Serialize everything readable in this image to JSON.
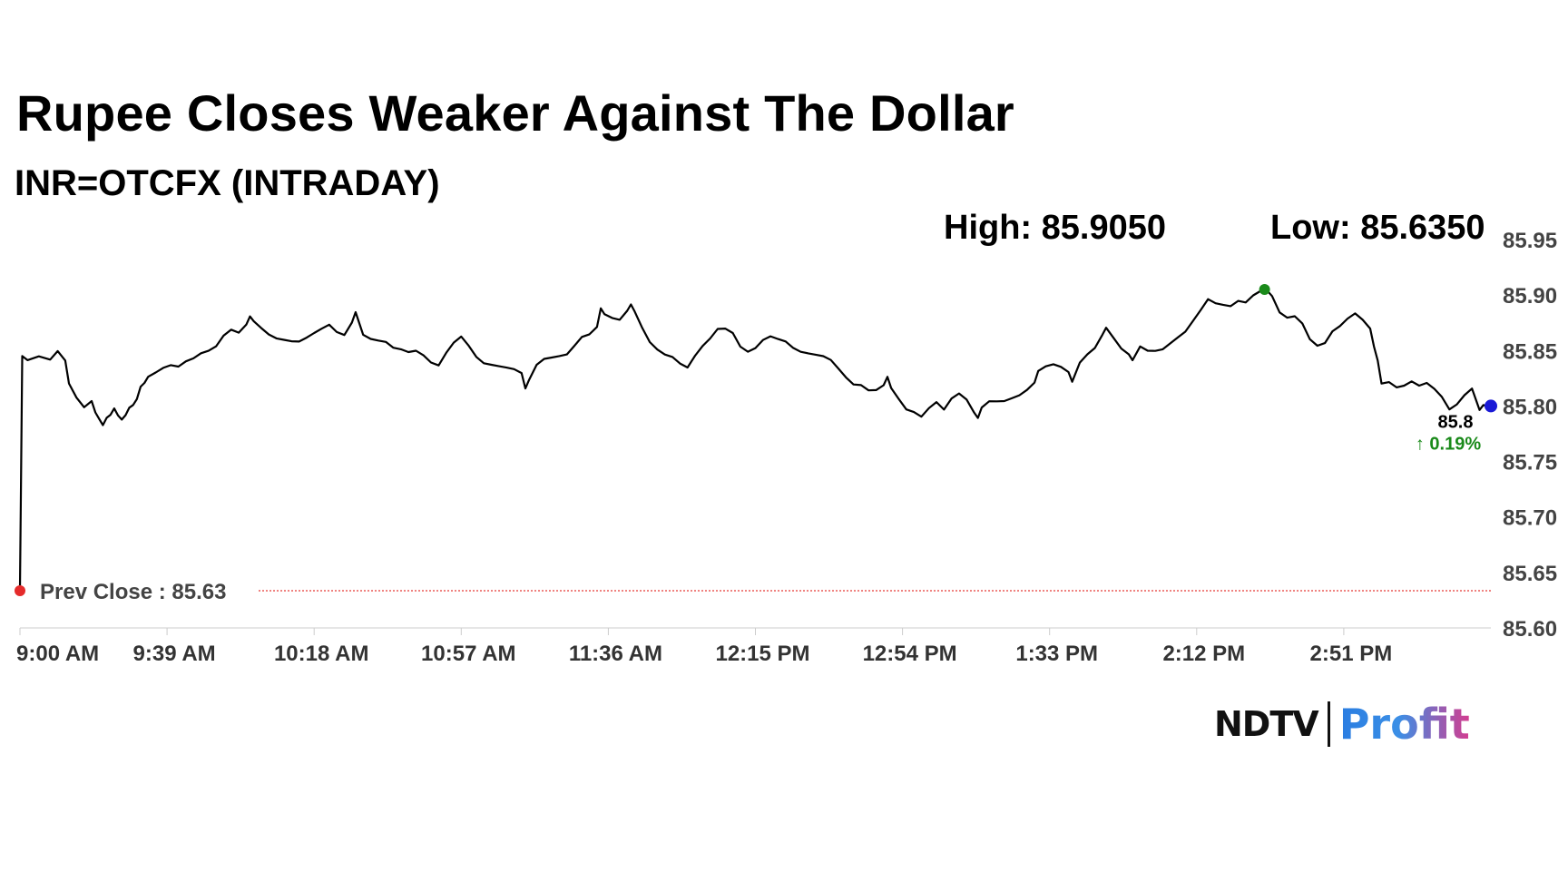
{
  "chart_data": {
    "type": "line",
    "title": "Rupee Closes Weaker Against The Dollar",
    "subtitle": "INR=OTCFX (INTRADAY)",
    "high_label": "High: 85.9050",
    "low_label": "Low: 85.6350",
    "yticks": [
      "85.95",
      "85.90",
      "85.85",
      "85.80",
      "85.75",
      "85.70",
      "85.65",
      "85.60"
    ],
    "ylim": [
      85.6,
      85.95
    ],
    "xticks": [
      "9:00 AM",
      "9:39 AM",
      "10:18 AM",
      "10:57 AM",
      "11:36 AM",
      "12:15 PM",
      "12:54 PM",
      "1:33 PM",
      "2:12 PM",
      "2:51 PM"
    ],
    "x_range_minutes": [
      0,
      390
    ],
    "prev_close": 85.6335,
    "prev_close_label": "Prev Close : 85.63",
    "last_value_label": "85.8",
    "change_label": "↑ 0.19%",
    "high_value": 85.905,
    "high_time_min": 330,
    "last_value": 85.8,
    "series": [
      {
        "points": [
          [
            0,
            85.635
          ],
          [
            0.6,
            85.845
          ],
          [
            2,
            85.84
          ],
          [
            5,
            85.843
          ],
          [
            8,
            85.84
          ],
          [
            10,
            85.848
          ],
          [
            12,
            85.84
          ],
          [
            13,
            85.82
          ],
          [
            15,
            85.808
          ],
          [
            17,
            85.8
          ],
          [
            19,
            85.806
          ],
          [
            20,
            85.796
          ],
          [
            21,
            85.79
          ],
          [
            22,
            85.784
          ],
          [
            23,
            85.79
          ],
          [
            24,
            85.792
          ],
          [
            25,
            85.797
          ],
          [
            26,
            85.79
          ],
          [
            27,
            85.786
          ],
          [
            28,
            85.79
          ],
          [
            29,
            85.797
          ],
          [
            30,
            85.8
          ],
          [
            31,
            85.806
          ],
          [
            32,
            85.818
          ],
          [
            33,
            85.822
          ],
          [
            34,
            85.828
          ],
          [
            36,
            85.832
          ],
          [
            38,
            85.836
          ],
          [
            40,
            85.838
          ],
          [
            42,
            85.836
          ],
          [
            44,
            85.84
          ],
          [
            46,
            85.842
          ],
          [
            48,
            85.846
          ],
          [
            50,
            85.848
          ],
          [
            52,
            85.852
          ],
          [
            54,
            85.862
          ],
          [
            56,
            85.868
          ],
          [
            58,
            85.866
          ],
          [
            60,
            85.874
          ],
          [
            61,
            85.882
          ],
          [
            62,
            85.878
          ],
          [
            64,
            85.872
          ],
          [
            66,
            85.866
          ],
          [
            68,
            85.862
          ],
          [
            70,
            85.86
          ],
          [
            72,
            85.858
          ],
          [
            74,
            85.857
          ],
          [
            76,
            85.86
          ],
          [
            78,
            85.864
          ],
          [
            80,
            85.868
          ],
          [
            82,
            85.872
          ],
          [
            84,
            85.866
          ],
          [
            86,
            85.864
          ],
          [
            88,
            85.876
          ],
          [
            89,
            85.886
          ],
          [
            90,
            85.876
          ],
          [
            91,
            85.866
          ],
          [
            93,
            85.862
          ],
          [
            95,
            85.86
          ],
          [
            97,
            85.858
          ],
          [
            99,
            85.852
          ],
          [
            101,
            85.85
          ],
          [
            103,
            85.847
          ],
          [
            105,
            85.848
          ],
          [
            107,
            85.844
          ],
          [
            109,
            85.838
          ],
          [
            111,
            85.836
          ],
          [
            113,
            85.848
          ],
          [
            115,
            85.858
          ],
          [
            117,
            85.864
          ],
          [
            119,
            85.856
          ],
          [
            121,
            85.846
          ],
          [
            123,
            85.84
          ],
          [
            125,
            85.838
          ],
          [
            127,
            85.836
          ],
          [
            129,
            85.834
          ],
          [
            131,
            85.832
          ],
          [
            133,
            85.828
          ],
          [
            134,
            85.814
          ],
          [
            135,
            85.822
          ],
          [
            137,
            85.836
          ],
          [
            139,
            85.842
          ],
          [
            141,
            85.844
          ],
          [
            143,
            85.846
          ],
          [
            145,
            85.848
          ],
          [
            147,
            85.856
          ],
          [
            149,
            85.864
          ],
          [
            151,
            85.866
          ],
          [
            153,
            85.872
          ],
          [
            154,
            85.888
          ],
          [
            155,
            85.882
          ],
          [
            157,
            85.878
          ],
          [
            159,
            85.876
          ],
          [
            161,
            85.884
          ],
          [
            162,
            85.89
          ],
          [
            163,
            85.884
          ],
          [
            165,
            85.87
          ],
          [
            167,
            85.858
          ],
          [
            169,
            85.852
          ],
          [
            171,
            85.848
          ],
          [
            173,
            85.846
          ],
          [
            175,
            85.84
          ],
          [
            177,
            85.836
          ],
          [
            179,
            85.846
          ],
          [
            181,
            85.854
          ],
          [
            183,
            85.86
          ],
          [
            185,
            85.868
          ],
          [
            187,
            85.868
          ],
          [
            189,
            85.864
          ],
          [
            191,
            85.852
          ],
          [
            193,
            85.848
          ],
          [
            195,
            85.852
          ],
          [
            197,
            85.86
          ],
          [
            199,
            85.864
          ],
          [
            201,
            85.862
          ],
          [
            203,
            85.86
          ],
          [
            205,
            85.854
          ],
          [
            207,
            85.85
          ],
          [
            209,
            85.848
          ],
          [
            211,
            85.846
          ],
          [
            213,
            85.844
          ],
          [
            215,
            85.84
          ],
          [
            217,
            85.832
          ],
          [
            219,
            85.824
          ],
          [
            221,
            85.818
          ],
          [
            223,
            85.818
          ],
          [
            225,
            85.814
          ],
          [
            227,
            85.815
          ],
          [
            229,
            85.82
          ],
          [
            230,
            85.828
          ],
          [
            231,
            85.818
          ],
          [
            233,
            85.808
          ],
          [
            235,
            85.798
          ],
          [
            237,
            85.795
          ],
          [
            239,
            85.79
          ],
          [
            241,
            85.797
          ],
          [
            243,
            85.802
          ],
          [
            245,
            85.795
          ],
          [
            247,
            85.805
          ],
          [
            249,
            85.81
          ],
          [
            251,
            85.805
          ],
          [
            253,
            85.794
          ],
          [
            254,
            85.79
          ],
          [
            255,
            85.8
          ],
          [
            257,
            85.806
          ],
          [
            259,
            85.806
          ],
          [
            261,
            85.806
          ],
          [
            263,
            85.808
          ],
          [
            265,
            85.81
          ],
          [
            267,
            85.814
          ],
          [
            269,
            85.82
          ],
          [
            270,
            85.83
          ],
          [
            272,
            85.834
          ],
          [
            274,
            85.836
          ],
          [
            276,
            85.834
          ],
          [
            278,
            85.83
          ],
          [
            279,
            85.822
          ],
          [
            281,
            85.84
          ],
          [
            283,
            85.848
          ],
          [
            285,
            85.854
          ],
          [
            287,
            85.866
          ],
          [
            288,
            85.872
          ],
          [
            290,
            85.862
          ],
          [
            292,
            85.852
          ],
          [
            294,
            85.846
          ],
          [
            295,
            85.84
          ],
          [
            297,
            85.852
          ],
          [
            299,
            85.848
          ],
          [
            301,
            85.848
          ],
          [
            303,
            85.85
          ],
          [
            305,
            85.856
          ],
          [
            307,
            85.862
          ],
          [
            309,
            85.868
          ],
          [
            311,
            85.878
          ],
          [
            313,
            85.888
          ],
          [
            315,
            85.898
          ],
          [
            317,
            85.894
          ],
          [
            319,
            85.892
          ],
          [
            321,
            85.89
          ],
          [
            323,
            85.894
          ],
          [
            325,
            85.892
          ],
          [
            327,
            85.898
          ],
          [
            329,
            85.902
          ],
          [
            330,
            85.905
          ],
          [
            332,
            85.898
          ],
          [
            334,
            85.884
          ],
          [
            336,
            85.88
          ],
          [
            338,
            85.882
          ],
          [
            340,
            85.876
          ],
          [
            342,
            85.862
          ],
          [
            344,
            85.856
          ],
          [
            346,
            85.858
          ],
          [
            348,
            85.868
          ],
          [
            350,
            85.872
          ],
          [
            352,
            85.878
          ],
          [
            354,
            85.882
          ],
          [
            356,
            85.876
          ],
          [
            358,
            85.868
          ],
          [
            359,
            85.852
          ],
          [
            360,
            85.84
          ],
          [
            361,
            85.82
          ],
          [
            363,
            85.822
          ],
          [
            365,
            85.818
          ],
          [
            367,
            85.82
          ],
          [
            369,
            85.824
          ],
          [
            371,
            85.82
          ],
          [
            373,
            85.822
          ],
          [
            375,
            85.816
          ],
          [
            377,
            85.808
          ],
          [
            379,
            85.796
          ],
          [
            381,
            85.8
          ],
          [
            383,
            85.808
          ],
          [
            385,
            85.814
          ],
          [
            387,
            85.795
          ],
          [
            388,
            85.8
          ],
          [
            389,
            85.8
          ]
        ]
      }
    ]
  },
  "logo": {
    "brand": "NDTV",
    "product": "Profit"
  },
  "colors": {
    "line": "#000000",
    "prev_close_dot": "#e52b2b",
    "prev_close_line": "#e53935",
    "high_dot": "#1a8a1a",
    "last_dot": "#1a1ad6",
    "axis": "#cccccc",
    "change": "#1a8a1a"
  }
}
